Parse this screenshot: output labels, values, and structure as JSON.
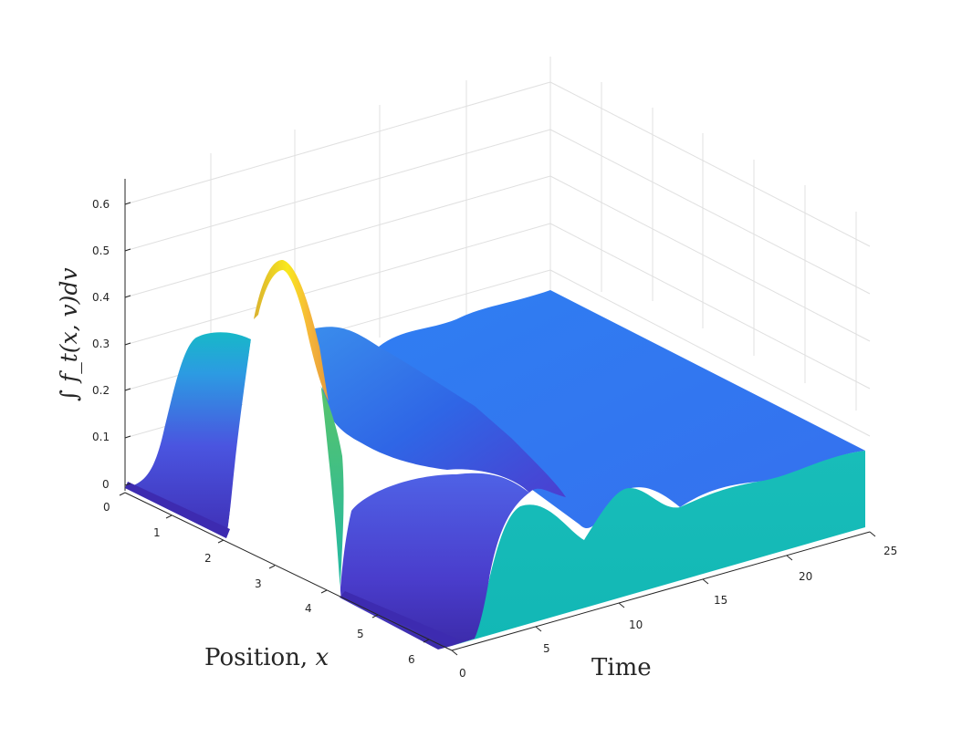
{
  "chart_data": {
    "type": "surface",
    "colormap": "parula",
    "xlabel_text": "Position, ",
    "xlabel_var": "x",
    "ylabel": "Time",
    "zlabel": "∫ f_t(x, v)dv",
    "x_ticks": [
      "0",
      "1",
      "2",
      "3",
      "4",
      "5",
      "6"
    ],
    "y_ticks": [
      "0",
      "5",
      "10",
      "15",
      "20",
      "25"
    ],
    "z_ticks": [
      "0",
      "0.1",
      "0.2",
      "0.3",
      "0.4",
      "0.5",
      "0.6"
    ],
    "xlim": [
      0,
      6.28
    ],
    "ylim": [
      0,
      25
    ],
    "zlim": [
      0,
      0.65
    ],
    "grid": true,
    "initial_profile_t0": {
      "x": [
        0,
        0.5,
        0.9,
        1.2,
        1.5,
        1.9,
        2.2,
        2.5,
        3.0,
        3.4,
        3.8,
        4.3,
        4.8,
        5.3,
        6.28
      ],
      "z": [
        0.0,
        0.02,
        0.12,
        0.2,
        0.05,
        0.18,
        0.45,
        0.48,
        0.4,
        0.26,
        0.18,
        0.12,
        0.08,
        0.04,
        0.0
      ]
    },
    "late_profile_description_values": {
      "t": 25,
      "x": [
        0,
        6.28
      ],
      "z": [
        0.15,
        0.15
      ]
    }
  }
}
